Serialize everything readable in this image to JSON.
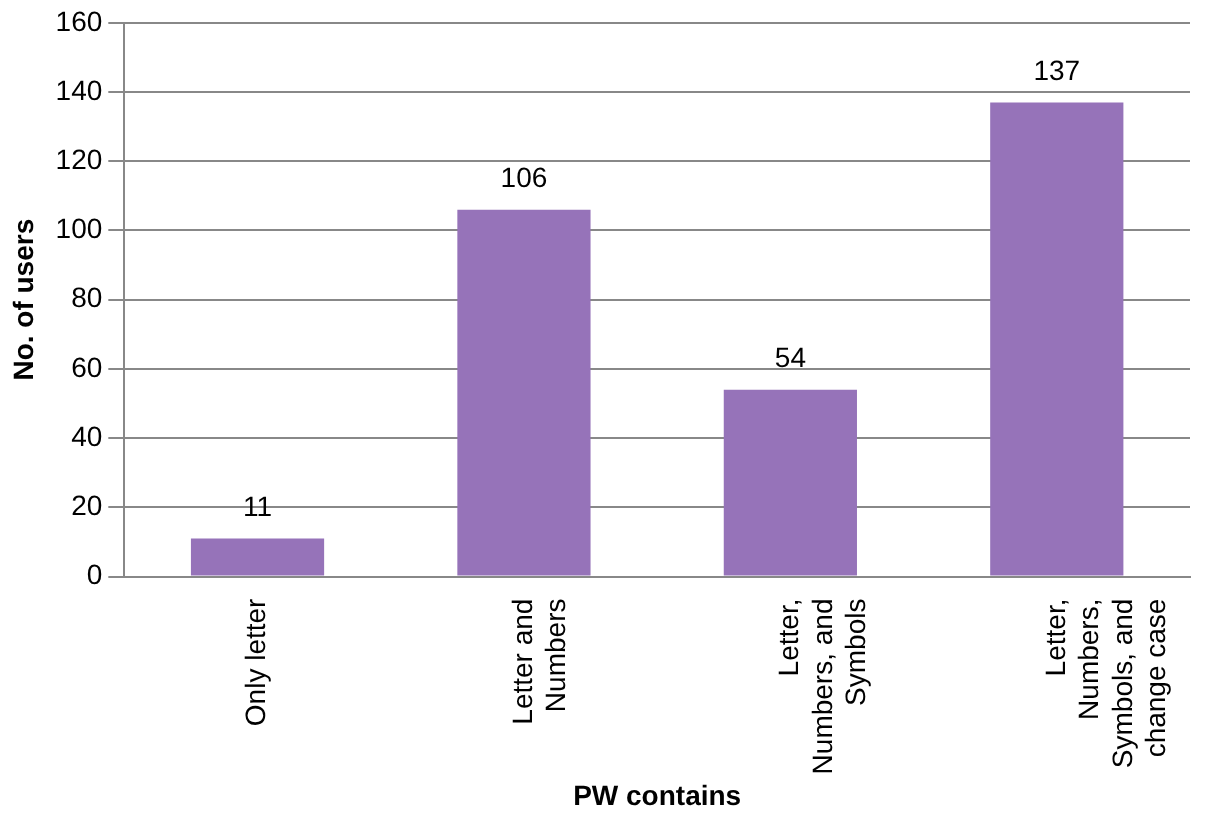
{
  "chart_data": {
    "type": "bar",
    "xlabel": "PW contains",
    "ylabel": "No. of users",
    "categories": [
      "Only letter",
      "Letter and Numbers",
      "Letter, Numbers, and Symbols",
      "Letter, Numbers, Symbols, and change case"
    ],
    "values": [
      11,
      106,
      54,
      137
    ],
    "color": "#9673b9",
    "ylim": [
      0,
      160
    ],
    "yticks": [
      0,
      20,
      40,
      60,
      80,
      100,
      120,
      140,
      160
    ],
    "grid": "y",
    "data_labels": true,
    "legend": false
  }
}
